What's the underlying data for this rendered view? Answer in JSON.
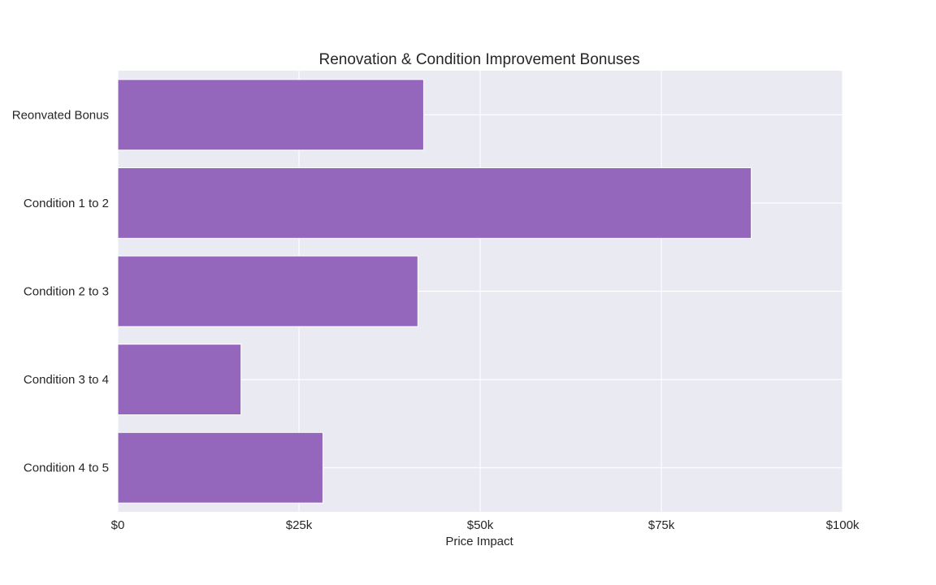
{
  "chart_data": {
    "type": "bar",
    "orientation": "horizontal",
    "title": "Renovation & Condition Improvement Bonuses",
    "xlabel": "Price Impact",
    "ylabel": "",
    "categories": [
      "Reonvated Bonus",
      "Condition 1 to 2",
      "Condition 2 to 3",
      "Condition 3 to 4",
      "Condition 4 to 5"
    ],
    "values": [
      42200,
      87400,
      41400,
      17000,
      28300
    ],
    "xlim": [
      0,
      100000
    ],
    "xticks": [
      0,
      25000,
      50000,
      75000,
      100000
    ],
    "xtick_labels": [
      "$0",
      "$25k",
      "$50k",
      "$75k",
      "$100k"
    ],
    "grid": true,
    "colors": {
      "bar": "#9467bd",
      "plot_background": "#eaeaf2",
      "grid": "#ffffff",
      "text": "#262626"
    }
  }
}
